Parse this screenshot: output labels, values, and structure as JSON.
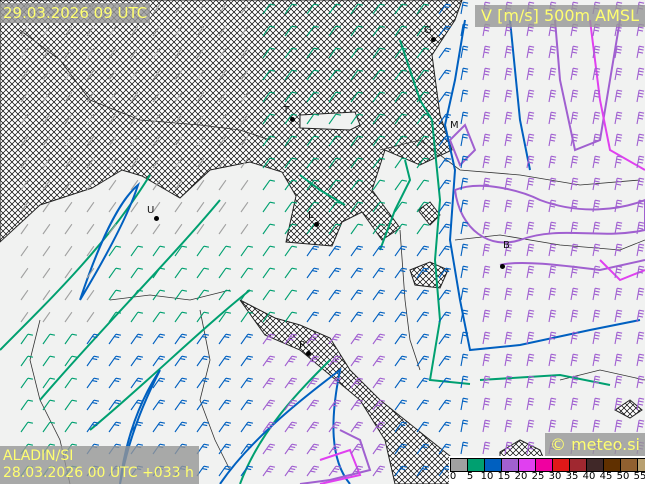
{
  "header": {
    "valid_time": "29.03.2026 09 UTC",
    "field": "V [m/s] 500m AMSL"
  },
  "footer": {
    "model": "ALADIN/SI",
    "run_info": "28.03.2026 00 UTC +033 h",
    "copyright": "© meteo.si"
  },
  "legend": {
    "ticks": [
      "0",
      "5",
      "10",
      "15",
      "20",
      "25",
      "30",
      "35",
      "40",
      "45",
      "50",
      "55"
    ],
    "colors": [
      "#a0a0a0",
      "#00a070",
      "#0060c0",
      "#a060d0",
      "#e040f0",
      "#f000a0",
      "#e01818",
      "#a02830",
      "#402828",
      "#603000",
      "#906030",
      "#b8a070"
    ]
  },
  "cities": [
    {
      "label": "G"
    },
    {
      "label": "T"
    },
    {
      "label": "M"
    },
    {
      "label": "U"
    },
    {
      "label": "L"
    },
    {
      "label": "B"
    },
    {
      "label": "R"
    }
  ],
  "colors": {
    "sea_hatch": "#000000",
    "land": "#f1f2f1",
    "text": "#ffff70",
    "label_bg": "#969696"
  }
}
